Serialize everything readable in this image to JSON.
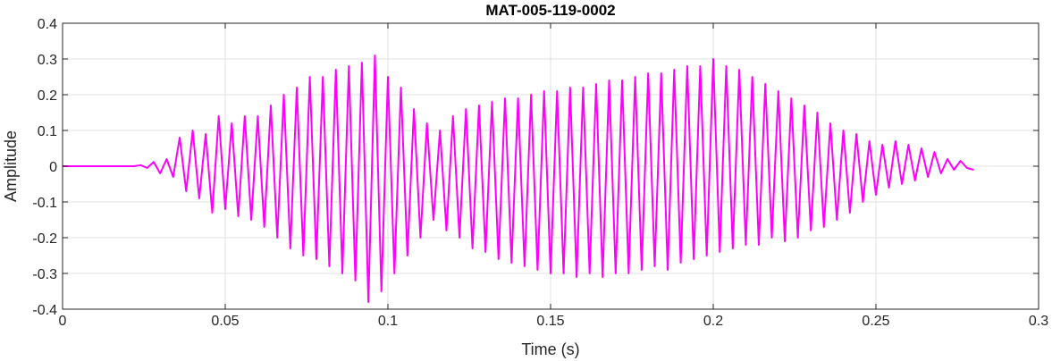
{
  "chart_data": {
    "type": "line",
    "title": "MAT-005-119-0002",
    "xlabel": "Time (s)",
    "ylabel": "Amplitude",
    "xlim": [
      0,
      0.3
    ],
    "ylim": [
      -0.4,
      0.4
    ],
    "xticks": [
      0,
      0.05,
      0.1,
      0.15,
      0.2,
      0.25,
      0.3
    ],
    "xtick_labels": [
      "0",
      "0.05",
      "0.1",
      "0.15",
      "0.2",
      "0.25",
      "0.3"
    ],
    "yticks": [
      -0.4,
      -0.3,
      -0.2,
      -0.1,
      0,
      0.1,
      0.2,
      0.3,
      0.4
    ],
    "ytick_labels": [
      "-0.4",
      "-0.3",
      "-0.2",
      "-0.1",
      "0",
      "0.1",
      "0.2",
      "0.3",
      "0.4"
    ],
    "grid": true,
    "series": [
      {
        "color": "#ff00ff",
        "x": [
          0,
          0.022,
          0.024,
          0.026,
          0.028,
          0.03,
          0.032,
          0.034,
          0.036,
          0.038,
          0.04,
          0.042,
          0.044,
          0.046,
          0.048,
          0.05,
          0.052,
          0.054,
          0.056,
          0.058,
          0.06,
          0.062,
          0.064,
          0.066,
          0.068,
          0.07,
          0.072,
          0.074,
          0.076,
          0.078,
          0.08,
          0.082,
          0.084,
          0.086,
          0.088,
          0.09,
          0.092,
          0.094,
          0.096,
          0.098,
          0.1,
          0.102,
          0.104,
          0.106,
          0.108,
          0.11,
          0.112,
          0.114,
          0.116,
          0.118,
          0.12,
          0.122,
          0.124,
          0.126,
          0.128,
          0.13,
          0.132,
          0.134,
          0.136,
          0.138,
          0.14,
          0.142,
          0.144,
          0.146,
          0.148,
          0.15,
          0.152,
          0.154,
          0.156,
          0.158,
          0.16,
          0.162,
          0.164,
          0.166,
          0.168,
          0.17,
          0.172,
          0.174,
          0.176,
          0.178,
          0.18,
          0.182,
          0.184,
          0.186,
          0.188,
          0.19,
          0.192,
          0.194,
          0.196,
          0.198,
          0.2,
          0.202,
          0.204,
          0.206,
          0.208,
          0.21,
          0.212,
          0.214,
          0.216,
          0.218,
          0.22,
          0.222,
          0.224,
          0.226,
          0.228,
          0.23,
          0.232,
          0.234,
          0.236,
          0.238,
          0.24,
          0.242,
          0.244,
          0.246,
          0.248,
          0.25,
          0.252,
          0.254,
          0.256,
          0.258,
          0.26,
          0.262,
          0.264,
          0.266,
          0.268,
          0.27,
          0.272,
          0.274,
          0.276,
          0.278,
          0.28
        ],
        "y": [
          0,
          0,
          0.003,
          -0.005,
          0.012,
          -0.02,
          0.02,
          -0.03,
          0.08,
          -0.07,
          0.1,
          -0.09,
          0.09,
          -0.13,
          0.14,
          -0.12,
          0.12,
          -0.14,
          0.14,
          -0.15,
          0.14,
          -0.17,
          0.17,
          -0.2,
          0.2,
          -0.23,
          0.22,
          -0.25,
          0.25,
          -0.26,
          0.25,
          -0.28,
          0.27,
          -0.3,
          0.28,
          -0.32,
          0.29,
          -0.38,
          0.31,
          -0.35,
          0.25,
          -0.3,
          0.22,
          -0.25,
          0.16,
          -0.2,
          0.12,
          -0.15,
          0.1,
          -0.18,
          0.14,
          -0.2,
          0.16,
          -0.23,
          0.17,
          -0.24,
          0.18,
          -0.26,
          0.19,
          -0.27,
          0.19,
          -0.28,
          0.2,
          -0.29,
          0.21,
          -0.3,
          0.21,
          -0.3,
          0.22,
          -0.31,
          0.22,
          -0.3,
          0.23,
          -0.31,
          0.24,
          -0.3,
          0.24,
          -0.3,
          0.25,
          -0.29,
          0.26,
          -0.28,
          0.26,
          -0.29,
          0.27,
          -0.27,
          0.28,
          -0.26,
          0.28,
          -0.25,
          0.3,
          -0.24,
          0.28,
          -0.23,
          0.27,
          -0.22,
          0.25,
          -0.22,
          0.23,
          -0.2,
          0.21,
          -0.21,
          0.19,
          -0.2,
          0.17,
          -0.18,
          0.15,
          -0.17,
          0.12,
          -0.15,
          0.1,
          -0.13,
          0.09,
          -0.1,
          0.07,
          -0.08,
          0.06,
          -0.06,
          0.07,
          -0.05,
          0.06,
          -0.04,
          0.05,
          -0.03,
          0.04,
          -0.02,
          0.02,
          -0.01,
          0.015,
          -0.005,
          -0.01
        ]
      }
    ]
  }
}
